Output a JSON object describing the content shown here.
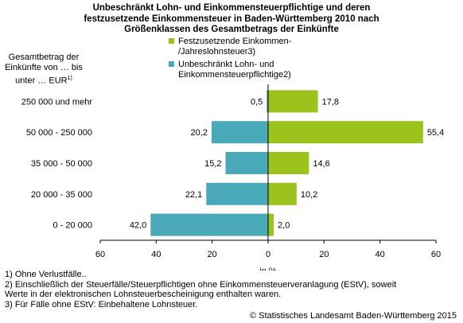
{
  "title_lines": [
    "Unbeschränkt Lohn- und Einkommensteuerpflichtige und deren",
    "festzusetzende Einkommensteuer in Baden-Württemberg 2010 nach",
    "Größenklassen des Gesamtbetrags der Einkünfte"
  ],
  "ylabel_lines": [
    "Gesamtbetrag der",
    "Einkünfte von … bis",
    "unter … EUR"
  ],
  "ylabel_sup": "1)",
  "legend": [
    {
      "lines": [
        "Festzusetzende Einkommen-",
        "/Jahreslohnsteuer3)"
      ],
      "color": "#9bc31c"
    },
    {
      "lines": [
        "Unbeschränkt Lohn- und",
        "Einkommensteuerpflichtige2)"
      ],
      "color": "#4aa9b8"
    }
  ],
  "footnotes": [
    "1) Ohne Verlustfälle..",
    "2) Einschließlich der Steuerfälle/Steuerpflichtigen ohne Einkommensteuerveranlagung (EStV), soweit",
    "Werte in der elektronischen Lohnsteuerbescheinigung enthalten waren.",
    "3) Für Fälle ohne EStV: Einbehaltene Lohnsteuer."
  ],
  "copyright": "© Statistisches Landesamt Baden-Württemberg 2015",
  "chart_data": {
    "type": "bar",
    "orientation": "horizontal-butterfly",
    "categories": [
      "250 000 und mehr",
      "50 000 - 250 000",
      "35 000 - 50 000",
      "20 000 - 35 000",
      "0 - 20 000"
    ],
    "series": [
      {
        "name": "Unbeschränkt Lohn- und Einkommensteuerpflichtige2)",
        "side": "left",
        "color": "#4aa9b8",
        "values": [
          0.5,
          20.2,
          15.2,
          22.1,
          42.0
        ],
        "labels": [
          "0,5",
          "20,2",
          "15,2",
          "22,1",
          "42,0"
        ]
      },
      {
        "name": "Festzusetzende Einkommen-/Jahreslohnsteuer3)",
        "side": "right",
        "color": "#9bc31c",
        "values": [
          17.8,
          55.4,
          14.6,
          10.2,
          2.0
        ],
        "labels": [
          "17,8",
          "55,4",
          "14,6",
          "10,2",
          "2,0"
        ]
      }
    ],
    "xlim": [
      -60,
      60
    ],
    "xticks": [
      -60,
      -40,
      -20,
      0,
      20,
      40,
      60
    ],
    "xtick_labels": [
      "60",
      "40",
      "20",
      "0",
      "20",
      "40",
      "60"
    ],
    "xlabel": "in %",
    "grid": false
  }
}
